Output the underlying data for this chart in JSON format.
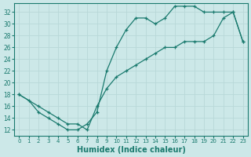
{
  "title": "",
  "xlabel": "Humidex (Indice chaleur)",
  "ylabel": "",
  "bg_color": "#cce8e8",
  "line_color": "#1a7a6e",
  "grid_color": "#b8d8d8",
  "xlim": [
    -0.5,
    23.5
  ],
  "ylim": [
    11,
    33.5
  ],
  "xticks": [
    0,
    1,
    2,
    3,
    4,
    5,
    6,
    7,
    8,
    9,
    10,
    11,
    12,
    13,
    14,
    15,
    16,
    17,
    18,
    19,
    20,
    21,
    22,
    23
  ],
  "yticks": [
    12,
    14,
    16,
    18,
    20,
    22,
    24,
    26,
    28,
    30,
    32
  ],
  "line1_x": [
    0,
    1,
    2,
    3,
    4,
    5,
    6,
    7,
    8,
    9,
    10,
    11,
    12,
    13,
    14,
    15,
    16,
    17,
    18,
    19,
    20,
    21,
    22,
    23
  ],
  "line1_y": [
    18,
    17,
    15,
    14,
    13,
    12,
    12,
    13,
    15,
    22,
    26,
    29,
    31,
    31,
    30,
    31,
    33,
    33,
    33,
    32,
    32,
    32,
    32,
    27
  ],
  "line2_x": [
    0,
    2,
    3,
    4,
    5,
    6,
    7,
    8,
    9,
    10,
    11,
    12,
    13,
    14,
    15,
    16,
    17,
    18,
    19,
    20,
    21,
    22,
    23
  ],
  "line2_y": [
    18,
    16,
    15,
    14,
    13,
    13,
    12,
    16,
    19,
    21,
    22,
    23,
    24,
    25,
    26,
    26,
    27,
    27,
    27,
    28,
    31,
    32,
    27
  ]
}
